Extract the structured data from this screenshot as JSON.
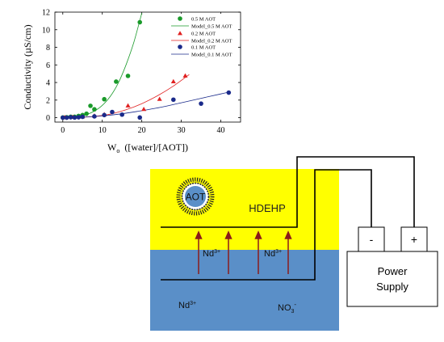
{
  "chart_data": {
    "type": "scatter",
    "xlabel": "W",
    "xlabel_sub": "o",
    "xlabel_rest": "  ([water]/[AOT])",
    "ylabel": "Conductivity  (µS/cm)",
    "xlim": [
      -2,
      45
    ],
    "ylim": [
      -0.5,
      12
    ],
    "xticks": [
      "0",
      "10",
      "20",
      "30",
      "40"
    ],
    "xtick_values": [
      0,
      10,
      20,
      30,
      40
    ],
    "yticks": [
      "0",
      "2",
      "4",
      "6",
      "8",
      "10",
      "12"
    ],
    "ytick_values": [
      0,
      2,
      4,
      6,
      8,
      10,
      12
    ],
    "legend_position": "top-right",
    "series": [
      {
        "name": "0.5 M AOT",
        "model_name": "Model_0.5 M AOT",
        "color": "#1a9a2a",
        "marker": "circle",
        "x": [
          0,
          1,
          2,
          3,
          4,
          5,
          6,
          7,
          8,
          10.5,
          13.5,
          16.5,
          19.5
        ],
        "y": [
          0.02,
          0.05,
          0.1,
          0.1,
          0.2,
          0.3,
          0.45,
          1.35,
          0.95,
          2.1,
          4.1,
          4.75,
          10.85
        ],
        "model_x": [
          0,
          2,
          4,
          6,
          8,
          10,
          12,
          14,
          16,
          18,
          20
        ],
        "model_y": [
          0,
          0.05,
          0.15,
          0.35,
          0.75,
          1.4,
          2.4,
          3.9,
          6.0,
          8.6,
          11.9
        ]
      },
      {
        "name": "0.2 M AOT",
        "model_name": "Model_0.2 M AOT",
        "color": "#e02020",
        "marker": "triangle",
        "x": [
          0.5,
          2.5,
          5,
          8,
          10.5,
          16.5,
          20.5,
          24.5,
          28,
          31
        ],
        "y": [
          0.02,
          0.05,
          0.1,
          0.2,
          0.35,
          1.35,
          0.95,
          2.1,
          4.1,
          4.75
        ],
        "model_x": [
          0,
          4,
          8,
          12,
          16,
          20,
          24,
          28,
          32
        ],
        "model_y": [
          0,
          0.05,
          0.15,
          0.4,
          0.9,
          1.6,
          2.5,
          3.6,
          4.9
        ]
      },
      {
        "name": "0.1 M AOT",
        "model_name": "Model_0.1 M AOT",
        "color": "#1a2a8a",
        "marker": "circle",
        "x": [
          0,
          1,
          2,
          3,
          4,
          5,
          8,
          10.5,
          12.5,
          15,
          19.5,
          28,
          35,
          42
        ],
        "y": [
          0,
          0,
          0.05,
          0.02,
          0.05,
          0.1,
          0.15,
          0.3,
          0.65,
          0.35,
          0.02,
          2.05,
          1.6,
          2.85
        ],
        "model_x": [
          0,
          5,
          10,
          15,
          20,
          25,
          30,
          35,
          40,
          42
        ],
        "model_y": [
          0,
          0.05,
          0.2,
          0.45,
          0.8,
          1.2,
          1.7,
          2.2,
          2.7,
          2.9
        ]
      }
    ]
  },
  "diagram": {
    "micelle_label": "AOT",
    "organic_phase": "HDEHP",
    "ion_upper_left": "Nd",
    "ion_upper_left_charge": "3+",
    "ion_upper_right": "Nd",
    "ion_upper_right_charge": "3+",
    "ion_lower": "Nd",
    "ion_lower_charge": "3+",
    "anion": "NO",
    "anion_sub": "3",
    "anion_charge": "-",
    "terminal_negative": "-",
    "terminal_positive": "+",
    "power_supply_line1": "Power",
    "power_supply_line2": "Supply",
    "colors": {
      "organic": "#ffff00",
      "aqueous": "#5a8fc8",
      "arrow": "#8b1a1a",
      "micelle_core": "#5a8fc8"
    }
  }
}
